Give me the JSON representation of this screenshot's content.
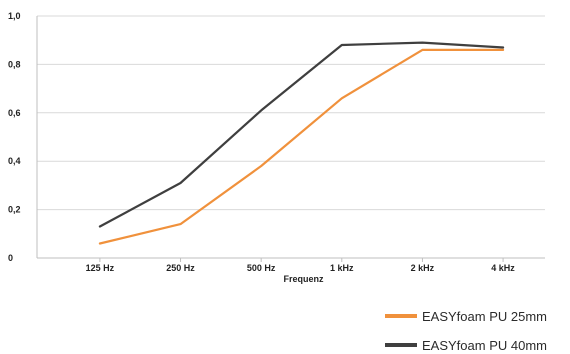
{
  "chart_data": {
    "type": "line",
    "title": "",
    "xlabel": "Frequenz",
    "ylabel": "",
    "categories": [
      "125 Hz",
      "250 Hz",
      "500 Hz",
      "1 kHz",
      "2 kHz",
      "4 kHz"
    ],
    "y_tick_labels": [
      "0",
      "0,2",
      "0,4",
      "0,6",
      "0,8",
      "1,0"
    ],
    "y_tick_values": [
      0,
      0.2,
      0.4,
      0.6,
      0.8,
      1.0
    ],
    "ylim": [
      0,
      1.0
    ],
    "grid": true,
    "legend_position": "bottom-right",
    "series": [
      {
        "name": "EASYfoam PU 25mm",
        "color": "#F0913C",
        "values": [
          0.06,
          0.14,
          0.38,
          0.66,
          0.86,
          0.86
        ]
      },
      {
        "name": "EASYfoam PU 40mm",
        "color": "#3F3F3F",
        "values": [
          0.13,
          0.31,
          0.61,
          0.88,
          0.89,
          0.87
        ]
      }
    ]
  }
}
